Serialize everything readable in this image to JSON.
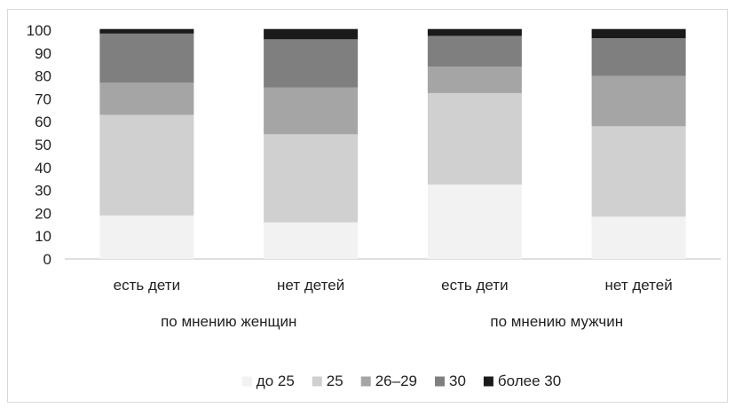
{
  "chart_data": {
    "type": "bar",
    "stacked": true,
    "categories": [
      "есть дети",
      "нет детей",
      "есть дети",
      "нет детей"
    ],
    "groups": [
      {
        "label": "по мнению женщин",
        "categories": [
          0,
          1
        ]
      },
      {
        "label": "по мнению мужчин",
        "categories": [
          2,
          3
        ]
      }
    ],
    "series": [
      {
        "name": "до 25",
        "color": "#f2f2f2",
        "values": [
          19,
          16,
          32.5,
          18.5
        ]
      },
      {
        "name": "25",
        "color": "#d0d0d0",
        "values": [
          44,
          38.5,
          40,
          39.5
        ]
      },
      {
        "name": "26–29",
        "color": "#a5a5a5",
        "values": [
          14,
          20.5,
          11.5,
          22
        ]
      },
      {
        "name": "30",
        "color": "#7f7f7f",
        "values": [
          21.5,
          21,
          13.5,
          16.5
        ]
      },
      {
        "name": "более 30",
        "color": "#1a1a1a",
        "values": [
          2,
          4.5,
          3,
          4
        ]
      }
    ],
    "ylim": [
      0,
      100
    ],
    "yticks": [
      0,
      10,
      20,
      30,
      40,
      50,
      60,
      70,
      80,
      90,
      100
    ],
    "ytick_labels": [
      "0",
      "10",
      "20",
      "30",
      "40",
      "50",
      "60",
      "70",
      "80",
      "90",
      "100"
    ],
    "grid": false,
    "legend_position": "bottom",
    "title": "",
    "xlabel": "",
    "ylabel": ""
  }
}
